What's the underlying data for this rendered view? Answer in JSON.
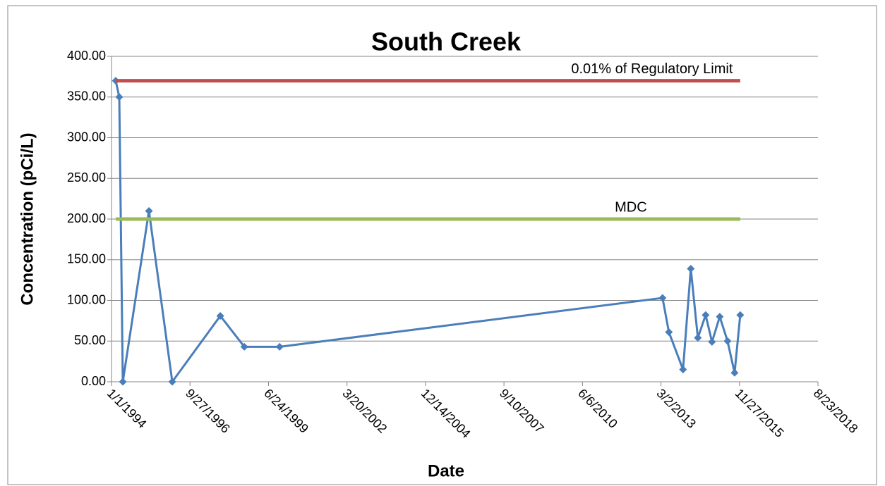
{
  "chart_data": {
    "type": "line",
    "title": "South Creek",
    "x_label": "Date",
    "y_label": "Concentration (pCi/L)",
    "xlim": [
      "1/1/1994",
      "8/23/2018"
    ],
    "xticks": [
      "1/1/1994",
      "9/27/1996",
      "6/24/1999",
      "3/20/2002",
      "12/14/2004",
      "9/10/2007",
      "6/6/2010",
      "3/2/2013",
      "11/27/2015",
      "8/23/2018"
    ],
    "ylim": [
      0,
      400
    ],
    "yticks": [
      {
        "value": 0,
        "label": "0.00"
      },
      {
        "value": 50,
        "label": "50.00"
      },
      {
        "value": 100,
        "label": "100.00"
      },
      {
        "value": 150,
        "label": "150.00"
      },
      {
        "value": 200,
        "label": "200.00"
      },
      {
        "value": 250,
        "label": "250.00"
      },
      {
        "value": 300,
        "label": "300.00"
      },
      {
        "value": 350,
        "label": "350.00"
      },
      {
        "value": 400,
        "label": "400.00"
      }
    ],
    "grid": true,
    "series": [
      {
        "color": "#4a7ebb",
        "markers": true,
        "x": [
          "2/24/1994",
          "4/10/1994",
          "5/25/1994",
          "4/23/1995",
          "2/14/1996",
          "10/18/1997",
          "8/20/1998",
          "11/13/1999",
          "3/22/2013",
          "6/11/2013",
          "12/8/2013",
          "3/17/2014",
          "6/15/2014",
          "9/22/2014",
          "12/12/2014",
          "3/21/2015",
          "6/28/2015",
          "9/26/2015",
          "12/7/2015"
        ],
        "values": [
          370,
          350,
          0,
          210,
          0,
          81,
          43,
          43,
          103,
          61,
          15,
          139,
          54,
          82,
          49,
          80,
          50,
          11,
          82
        ]
      },
      {
        "name": "0.01% of Regulatory Limit",
        "color": "#c0504d",
        "markers": false,
        "x": [
          "2/24/1994",
          "12/7/2015"
        ],
        "values": [
          370,
          370
        ]
      },
      {
        "name": "MDC",
        "color": "#9bbb59",
        "markers": false,
        "x": [
          "2/24/1994",
          "12/7/2015"
        ],
        "values": [
          200,
          200
        ]
      }
    ]
  }
}
